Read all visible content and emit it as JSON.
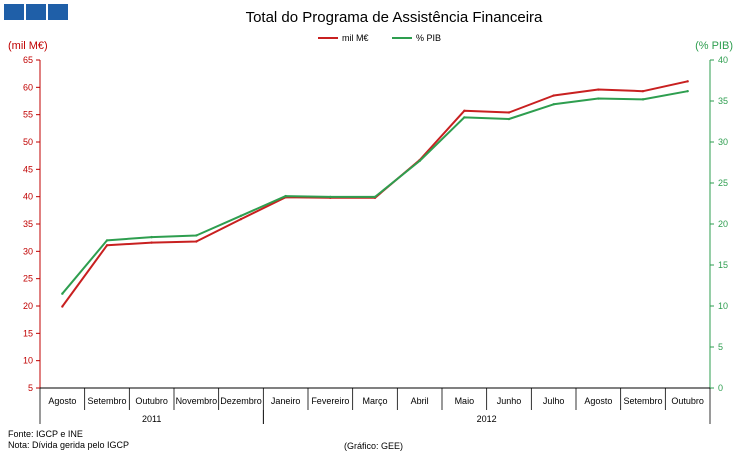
{
  "logo": {
    "colors": [
      "#1f5fa8",
      "#1f5fa8",
      "#1f5fa8"
    ]
  },
  "footer": {
    "source": "Fonte: IGCP e INE",
    "note": "Nota: Dívida gerida pelo IGCP",
    "credit": "(Gráfico:  GEE)"
  },
  "chart_data": {
    "type": "line",
    "title": "Total do Programa de Assistência Financeira",
    "ylabel_left": "(mil M€)",
    "ylabel_right": "(% PIB)",
    "left_axis_color": "#c00000",
    "right_axis_color": "#2e9e4f",
    "ylim_left": [
      5,
      65
    ],
    "yticks_left": [
      5,
      10,
      15,
      20,
      25,
      30,
      35,
      40,
      45,
      50,
      55,
      60,
      65
    ],
    "ylim_right": [
      0,
      40
    ],
    "yticks_right": [
      0,
      5,
      10,
      15,
      20,
      25,
      30,
      35,
      40
    ],
    "categories": [
      "Agosto",
      "Setembro",
      "Outubro",
      "Novembro",
      "Dezembro",
      "Janeiro",
      "Fevereiro",
      "Março",
      "Abril",
      "Maio",
      "Junho",
      "Julho",
      "Agosto",
      "Setembro",
      "Outubro"
    ],
    "year_groups": [
      {
        "label": "2011",
        "start": 0,
        "end": 4
      },
      {
        "label": "2012",
        "start": 5,
        "end": 14
      }
    ],
    "series": [
      {
        "name": "mil M€",
        "axis": "left",
        "color": "#c82020",
        "values": [
          19.9,
          31.1,
          31.6,
          31.8,
          35.9,
          39.9,
          39.8,
          39.8,
          46.7,
          55.7,
          55.4,
          58.5,
          59.6,
          59.3,
          61.1
        ]
      },
      {
        "name": "% PIB",
        "axis": "right",
        "color": "#2e9e4f",
        "values": [
          11.5,
          18.0,
          18.4,
          18.6,
          21.0,
          23.4,
          23.3,
          23.3,
          27.7,
          33.0,
          32.8,
          34.6,
          35.3,
          35.2,
          36.2
        ]
      }
    ],
    "legend_position": "top-center",
    "grid": false
  }
}
